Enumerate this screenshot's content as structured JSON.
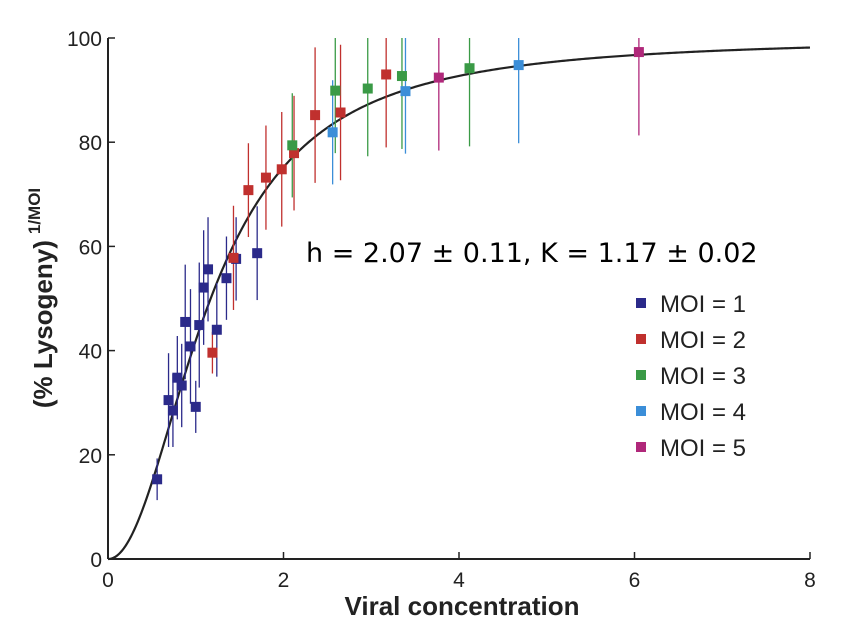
{
  "chart_data": {
    "type": "scatter",
    "xlabel": "Viral concentration",
    "ylabel_main": "(% Lysogeny)",
    "ylabel_superscript": "1/MOI",
    "xlim": [
      0,
      8
    ],
    "ylim": [
      0,
      100
    ],
    "x_ticks": [
      "0",
      "2",
      "4",
      "6",
      "8"
    ],
    "y_ticks": [
      "0",
      "20",
      "40",
      "60",
      "80",
      "100"
    ],
    "annotation": "h = 2.07 ± 0.11, K = 1.17 ± 0.02",
    "fit": {
      "h": 2.07,
      "K": 1.17
    },
    "legend_position": "right",
    "series": [
      {
        "name": "MOI = 1",
        "color": "#2b2a8a",
        "points": [
          {
            "x": 0.56,
            "y": 15.3,
            "err": 4
          },
          {
            "x": 0.69,
            "y": 30.5,
            "err": 9
          },
          {
            "x": 0.74,
            "y": 28.5,
            "err": 7
          },
          {
            "x": 0.79,
            "y": 34.8,
            "err": 8
          },
          {
            "x": 0.84,
            "y": 33.3,
            "err": 8
          },
          {
            "x": 0.88,
            "y": 45.5,
            "err": 11
          },
          {
            "x": 0.94,
            "y": 40.8,
            "err": 11
          },
          {
            "x": 1.0,
            "y": 29.2,
            "err": 5
          },
          {
            "x": 1.04,
            "y": 44.9,
            "err": 12
          },
          {
            "x": 1.09,
            "y": 52.1,
            "err": 11
          },
          {
            "x": 1.14,
            "y": 55.6,
            "err": 10
          },
          {
            "x": 1.24,
            "y": 44.0,
            "err": 9
          },
          {
            "x": 1.35,
            "y": 53.9,
            "err": 8
          },
          {
            "x": 1.46,
            "y": 57.6,
            "err": 8
          },
          {
            "x": 1.7,
            "y": 58.7,
            "err": 9
          }
        ]
      },
      {
        "name": "MOI = 2",
        "color": "#c0302e",
        "points": [
          {
            "x": 1.19,
            "y": 39.6,
            "err": 4
          },
          {
            "x": 1.43,
            "y": 57.8,
            "err": 10
          },
          {
            "x": 1.6,
            "y": 70.8,
            "err": 9
          },
          {
            "x": 1.8,
            "y": 73.2,
            "err": 10
          },
          {
            "x": 1.98,
            "y": 74.8,
            "err": 11
          },
          {
            "x": 2.12,
            "y": 77.9,
            "err": 11
          },
          {
            "x": 2.36,
            "y": 85.2,
            "err": 13
          },
          {
            "x": 2.65,
            "y": 85.7,
            "err": 13
          },
          {
            "x": 3.17,
            "y": 93.0,
            "err": 14
          }
        ]
      },
      {
        "name": "MOI = 3",
        "color": "#3a9a46",
        "points": [
          {
            "x": 2.1,
            "y": 79.4,
            "err": 10
          },
          {
            "x": 2.59,
            "y": 89.9,
            "err": 12
          },
          {
            "x": 2.96,
            "y": 90.3,
            "err": 13
          },
          {
            "x": 3.35,
            "y": 92.7,
            "err": 14
          },
          {
            "x": 4.12,
            "y": 94.2,
            "err": 15
          }
        ]
      },
      {
        "name": "MOI = 4",
        "color": "#3b8ed8",
        "points": [
          {
            "x": 2.56,
            "y": 81.9,
            "err": 10
          },
          {
            "x": 3.39,
            "y": 89.8,
            "err": 12
          },
          {
            "x": 4.68,
            "y": 94.8,
            "err": 15
          }
        ]
      },
      {
        "name": "MOI = 5",
        "color": "#b0287a",
        "points": [
          {
            "x": 3.77,
            "y": 92.4,
            "err": 14
          },
          {
            "x": 6.05,
            "y": 97.3,
            "err": 16
          }
        ]
      }
    ]
  }
}
